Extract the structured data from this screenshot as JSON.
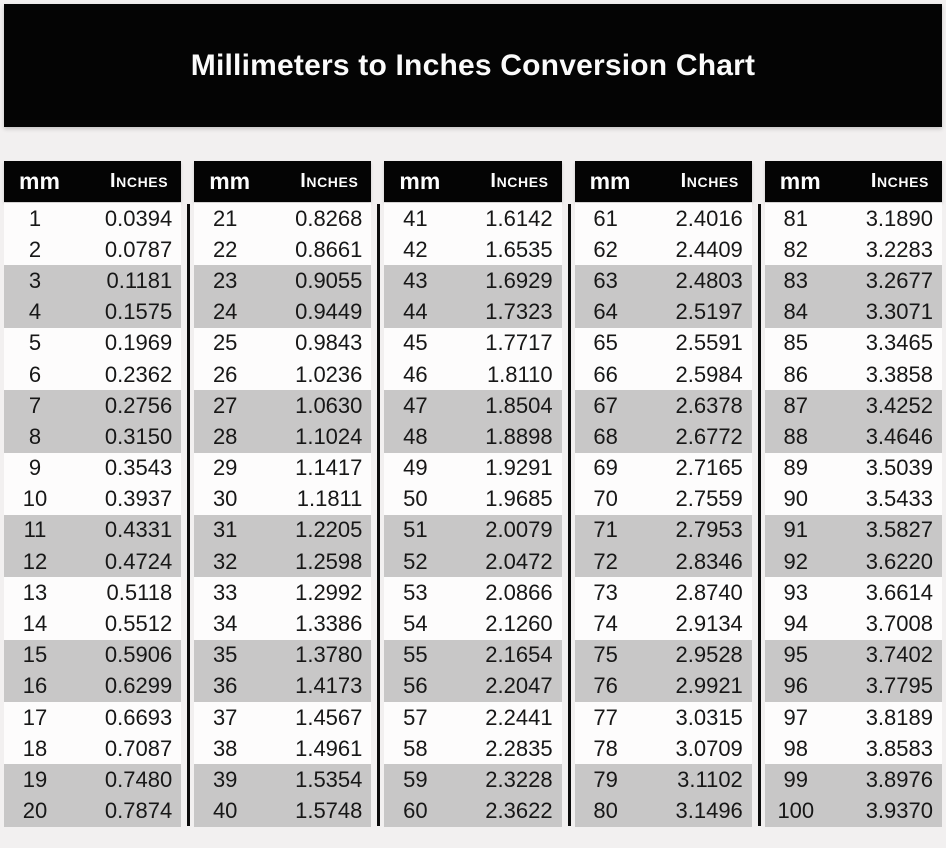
{
  "title": "Millimeters to Inches Conversion Chart",
  "columns": {
    "mm_label": "mm",
    "inches_label": "Inches"
  },
  "colors": {
    "title_bar_bg": "#040404",
    "header_bg": "#040404",
    "header_text": "#fcfcfc",
    "stripe_gray": "#c8c7c7",
    "row_white": "#fdfcfc",
    "page_bg": "#f2f0f0",
    "body_text": "#171717"
  },
  "chart_data": {
    "type": "table",
    "title": "Millimeters to Inches Conversion Chart",
    "columns_per_block": [
      "mm",
      "Inches"
    ],
    "layout": {
      "block_count": 5,
      "rows_per_block": 20,
      "striping": "alternating pairs: two white rows then two gray rows",
      "grid": "off"
    },
    "blocks": [
      {
        "mm_range": "1-20",
        "rows": [
          [
            1,
            "0.0394"
          ],
          [
            2,
            "0.0787"
          ],
          [
            3,
            "0.1181"
          ],
          [
            4,
            "0.1575"
          ],
          [
            5,
            "0.1969"
          ],
          [
            6,
            "0.2362"
          ],
          [
            7,
            "0.2756"
          ],
          [
            8,
            "0.3150"
          ],
          [
            9,
            "0.3543"
          ],
          [
            10,
            "0.3937"
          ],
          [
            11,
            "0.4331"
          ],
          [
            12,
            "0.4724"
          ],
          [
            13,
            "0.5118"
          ],
          [
            14,
            "0.5512"
          ],
          [
            15,
            "0.5906"
          ],
          [
            16,
            "0.6299"
          ],
          [
            17,
            "0.6693"
          ],
          [
            18,
            "0.7087"
          ],
          [
            19,
            "0.7480"
          ],
          [
            20,
            "0.7874"
          ]
        ]
      },
      {
        "mm_range": "21-40",
        "rows": [
          [
            21,
            "0.8268"
          ],
          [
            22,
            "0.8661"
          ],
          [
            23,
            "0.9055"
          ],
          [
            24,
            "0.9449"
          ],
          [
            25,
            "0.9843"
          ],
          [
            26,
            "1.0236"
          ],
          [
            27,
            "1.0630"
          ],
          [
            28,
            "1.1024"
          ],
          [
            29,
            "1.1417"
          ],
          [
            30,
            "1.1811"
          ],
          [
            31,
            "1.2205"
          ],
          [
            32,
            "1.2598"
          ],
          [
            33,
            "1.2992"
          ],
          [
            34,
            "1.3386"
          ],
          [
            35,
            "1.3780"
          ],
          [
            36,
            "1.4173"
          ],
          [
            37,
            "1.4567"
          ],
          [
            38,
            "1.4961"
          ],
          [
            39,
            "1.5354"
          ],
          [
            40,
            "1.5748"
          ]
        ]
      },
      {
        "mm_range": "41-60",
        "rows": [
          [
            41,
            "1.6142"
          ],
          [
            42,
            "1.6535"
          ],
          [
            43,
            "1.6929"
          ],
          [
            44,
            "1.7323"
          ],
          [
            45,
            "1.7717"
          ],
          [
            46,
            "1.8110"
          ],
          [
            47,
            "1.8504"
          ],
          [
            48,
            "1.8898"
          ],
          [
            49,
            "1.9291"
          ],
          [
            50,
            "1.9685"
          ],
          [
            51,
            "2.0079"
          ],
          [
            52,
            "2.0472"
          ],
          [
            53,
            "2.0866"
          ],
          [
            54,
            "2.1260"
          ],
          [
            55,
            "2.1654"
          ],
          [
            56,
            "2.2047"
          ],
          [
            57,
            "2.2441"
          ],
          [
            58,
            "2.2835"
          ],
          [
            59,
            "2.3228"
          ],
          [
            60,
            "2.3622"
          ]
        ]
      },
      {
        "mm_range": "61-80",
        "rows": [
          [
            61,
            "2.4016"
          ],
          [
            62,
            "2.4409"
          ],
          [
            63,
            "2.4803"
          ],
          [
            64,
            "2.5197"
          ],
          [
            65,
            "2.5591"
          ],
          [
            66,
            "2.5984"
          ],
          [
            67,
            "2.6378"
          ],
          [
            68,
            "2.6772"
          ],
          [
            69,
            "2.7165"
          ],
          [
            70,
            "2.7559"
          ],
          [
            71,
            "2.7953"
          ],
          [
            72,
            "2.8346"
          ],
          [
            73,
            "2.8740"
          ],
          [
            74,
            "2.9134"
          ],
          [
            75,
            "2.9528"
          ],
          [
            76,
            "2.9921"
          ],
          [
            77,
            "3.0315"
          ],
          [
            78,
            "3.0709"
          ],
          [
            79,
            "3.1102"
          ],
          [
            80,
            "3.1496"
          ]
        ]
      },
      {
        "mm_range": "81-100",
        "rows": [
          [
            81,
            "3.1890"
          ],
          [
            82,
            "3.2283"
          ],
          [
            83,
            "3.2677"
          ],
          [
            84,
            "3.3071"
          ],
          [
            85,
            "3.3465"
          ],
          [
            86,
            "3.3858"
          ],
          [
            87,
            "3.4252"
          ],
          [
            88,
            "3.4646"
          ],
          [
            89,
            "3.5039"
          ],
          [
            90,
            "3.5433"
          ],
          [
            91,
            "3.5827"
          ],
          [
            92,
            "3.6220"
          ],
          [
            93,
            "3.6614"
          ],
          [
            94,
            "3.7008"
          ],
          [
            95,
            "3.7402"
          ],
          [
            96,
            "3.7795"
          ],
          [
            97,
            "3.8189"
          ],
          [
            98,
            "3.8583"
          ],
          [
            99,
            "3.8976"
          ],
          [
            100,
            "3.9370"
          ]
        ]
      }
    ]
  }
}
